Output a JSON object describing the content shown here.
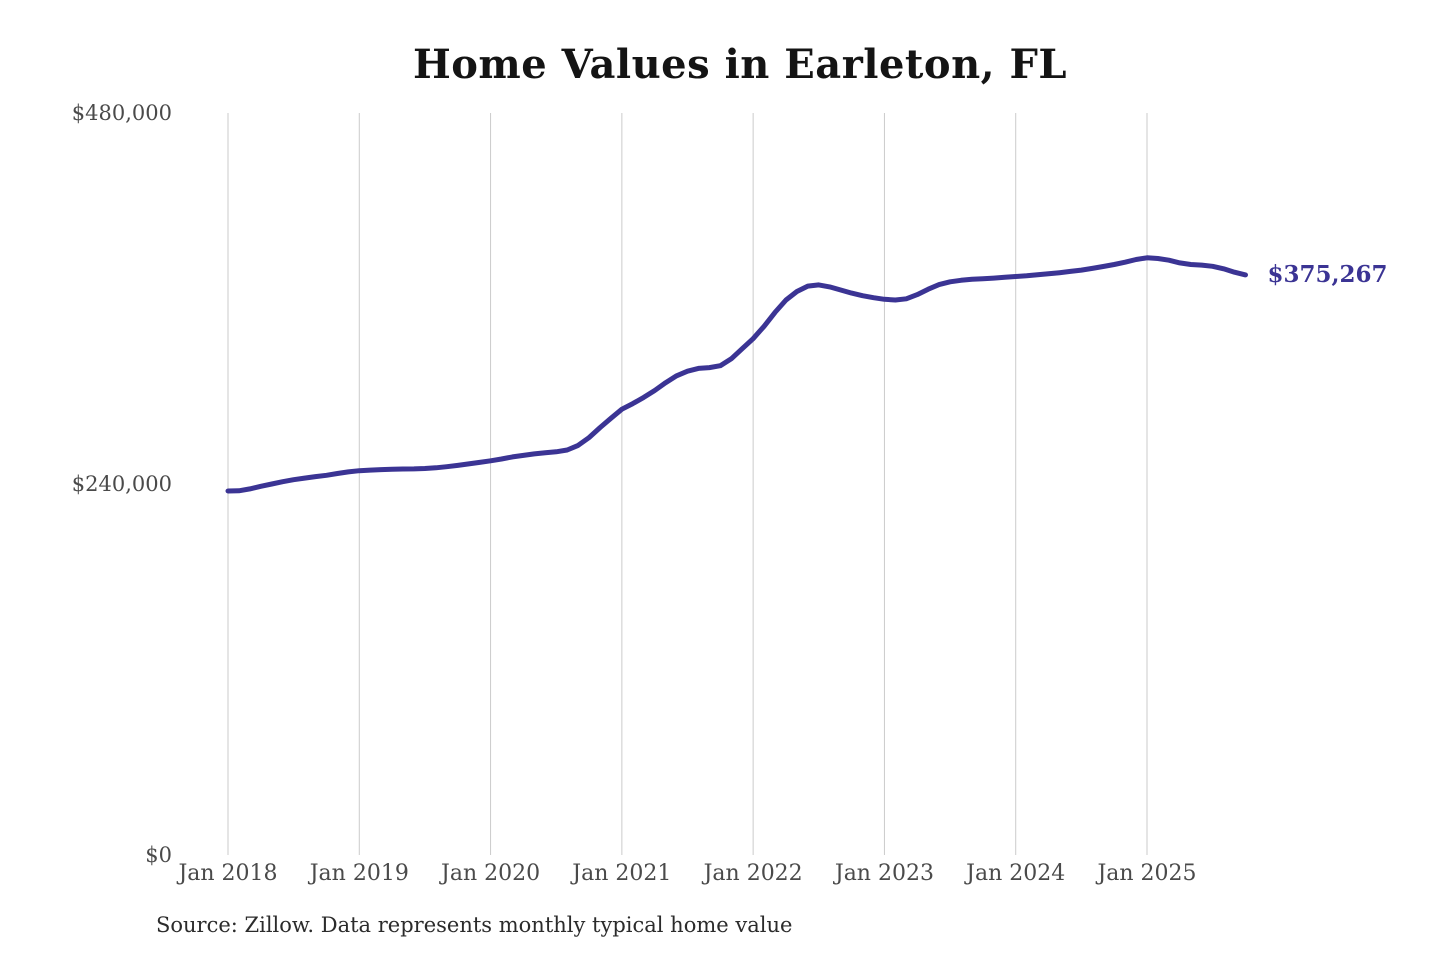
{
  "chart": {
    "title": "Home Values in Earleton, FL",
    "end_label": "$375,267",
    "source": "Source: Zillow. Data represents monthly typical home value"
  },
  "chart_data": {
    "type": "line",
    "title": "Home Values in Earleton, FL",
    "series_name": "Monthly typical home value",
    "x": [
      "Jan 2018",
      "Feb 2018",
      "Mar 2018",
      "Apr 2018",
      "May 2018",
      "Jun 2018",
      "Jul 2018",
      "Aug 2018",
      "Sep 2018",
      "Oct 2018",
      "Nov 2018",
      "Dec 2018",
      "Jan 2019",
      "Feb 2019",
      "Mar 2019",
      "Apr 2019",
      "May 2019",
      "Jun 2019",
      "Jul 2019",
      "Aug 2019",
      "Sep 2019",
      "Oct 2019",
      "Nov 2019",
      "Dec 2019",
      "Jan 2020",
      "Feb 2020",
      "Mar 2020",
      "Apr 2020",
      "May 2020",
      "Jun 2020",
      "Jul 2020",
      "Aug 2020",
      "Sep 2020",
      "Oct 2020",
      "Nov 2020",
      "Dec 2020",
      "Jan 2021",
      "Feb 2021",
      "Mar 2021",
      "Apr 2021",
      "May 2021",
      "Jun 2021",
      "Jul 2021",
      "Aug 2021",
      "Sep 2021",
      "Oct 2021",
      "Nov 2021",
      "Dec 2021",
      "Jan 2022",
      "Feb 2022",
      "Mar 2022",
      "Apr 2022",
      "May 2022",
      "Jun 2022",
      "Jul 2022",
      "Aug 2022",
      "Sep 2022",
      "Oct 2022",
      "Nov 2022",
      "Dec 2022",
      "Jan 2023",
      "Feb 2023",
      "Mar 2023",
      "Apr 2023",
      "May 2023",
      "Jun 2023",
      "Jul 2023",
      "Aug 2023",
      "Sep 2023",
      "Oct 2023",
      "Nov 2023",
      "Dec 2023",
      "Jan 2024",
      "Feb 2024",
      "Mar 2024",
      "Apr 2024",
      "May 2024",
      "Jun 2024",
      "Jul 2024",
      "Aug 2024",
      "Sep 2024",
      "Oct 2024",
      "Nov 2024",
      "Dec 2024",
      "Jan 2025",
      "Feb 2025",
      "Mar 2025",
      "Apr 2025",
      "May 2025",
      "Jun 2025",
      "Jul 2025",
      "Aug 2025",
      "Sep 2025",
      "Oct 2025"
    ],
    "values": [
      235500,
      235600,
      236800,
      238500,
      240000,
      241500,
      242800,
      243800,
      244800,
      245600,
      246800,
      247800,
      248600,
      249000,
      249300,
      249500,
      249700,
      249800,
      250000,
      250500,
      251200,
      252000,
      253000,
      254000,
      255000,
      256200,
      257500,
      258500,
      259500,
      260200,
      260800,
      262000,
      265000,
      270000,
      276500,
      282500,
      288400,
      292000,
      296000,
      300500,
      305500,
      310000,
      313000,
      314800,
      315300,
      316500,
      321000,
      327500,
      334000,
      342000,
      351000,
      359000,
      364500,
      368000,
      368800,
      367500,
      365500,
      363500,
      361800,
      360500,
      359500,
      359000,
      359800,
      362500,
      366000,
      369000,
      370800,
      371800,
      372400,
      372800,
      373200,
      373700,
      374200,
      374700,
      375300,
      376000,
      376700,
      377500,
      378400,
      379500,
      380700,
      382000,
      383500,
      385200,
      386300,
      385900,
      384800,
      383000,
      382000,
      381600,
      380800,
      379200,
      377000,
      375267
    ],
    "latest_point": {
      "x": "Oct 2025",
      "value": 375267,
      "label": "$375,267"
    },
    "ylim": [
      0,
      480000
    ],
    "yticks": [
      {
        "value": 0,
        "label": "$0"
      },
      {
        "value": 240000,
        "label": "$240,000"
      },
      {
        "value": 480000,
        "label": "$480,000"
      }
    ],
    "xticks": [
      {
        "month_index": 0,
        "label": "Jan 2018"
      },
      {
        "month_index": 12,
        "label": "Jan 2019"
      },
      {
        "month_index": 24,
        "label": "Jan 2020"
      },
      {
        "month_index": 36,
        "label": "Jan 2021"
      },
      {
        "month_index": 48,
        "label": "Jan 2022"
      },
      {
        "month_index": 60,
        "label": "Jan 2023"
      },
      {
        "month_index": 72,
        "label": "Jan 2024"
      },
      {
        "month_index": 84,
        "label": "Jan 2025"
      }
    ],
    "grid": "vertical-only",
    "legend": "none",
    "colors": {
      "line": "#3b3494",
      "end_label": "#3b3494",
      "gridline": "#cbcbcb",
      "tick_label": "#4a4a4a",
      "title": "#141414",
      "source": "#2b2b2b",
      "background": "#ffffff"
    }
  }
}
